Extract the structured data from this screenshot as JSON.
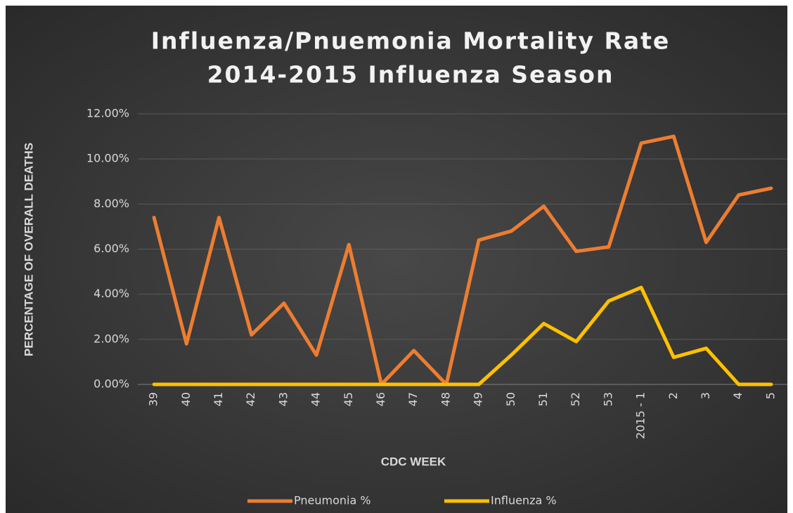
{
  "chart_data": {
    "type": "line",
    "title": "Influenza/Pnuemonia Mortality Rate",
    "subtitle": "2014-2015 Influenza Season",
    "y_label": "PERCENTAGE OF OVERALL DEATHS",
    "x_label": "CDC WEEK",
    "categories": [
      "39",
      "40",
      "41",
      "42",
      "43",
      "44",
      "45",
      "46",
      "47",
      "48",
      "49",
      "50",
      "51",
      "52",
      "53",
      "2015 - 1",
      "2",
      "3",
      "4",
      "5"
    ],
    "series": [
      {
        "name": "Pneumonia %",
        "color": "#ed7d31",
        "values": [
          7.4,
          1.8,
          7.4,
          2.2,
          3.6,
          1.3,
          6.2,
          0,
          1.5,
          0,
          6.4,
          6.8,
          7.9,
          5.9,
          6.1,
          10.7,
          11.0,
          6.3,
          8.4,
          8.7
        ]
      },
      {
        "name": "Influenza %",
        "color": "#ffc000",
        "values": [
          0,
          0,
          0,
          0,
          0,
          0,
          0,
          0,
          0,
          0,
          0,
          1.3,
          2.7,
          1.9,
          3.7,
          4.3,
          1.2,
          1.6,
          0,
          0
        ]
      }
    ],
    "ylim": [
      0,
      12
    ],
    "yticks": [
      {
        "value": 0,
        "label": "0.00%"
      },
      {
        "value": 2,
        "label": "2.00%"
      },
      {
        "value": 4,
        "label": "4.00%"
      },
      {
        "value": 6,
        "label": "6.00%"
      },
      {
        "value": 8,
        "label": "8.00%"
      },
      {
        "value": 10,
        "label": "10.00%"
      },
      {
        "value": 12,
        "label": "12.00%"
      }
    ],
    "grid": true,
    "legend": "bottom"
  }
}
